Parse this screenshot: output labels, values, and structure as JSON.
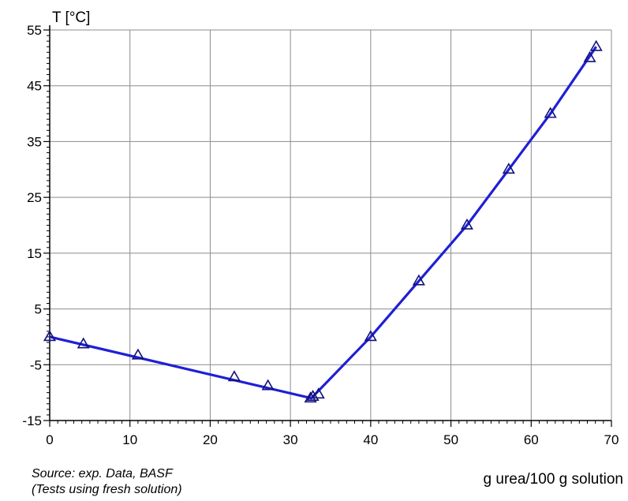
{
  "chart_data": {
    "type": "scatter",
    "title": "",
    "ylabel": "T [°C]",
    "xlabel": "g urea/100 g solution",
    "xlim": [
      0,
      70
    ],
    "ylim": [
      -15,
      55
    ],
    "xticks": [
      0,
      10,
      20,
      30,
      40,
      50,
      60,
      70
    ],
    "yticks": [
      -15,
      -5,
      5,
      15,
      25,
      35,
      45,
      55
    ],
    "xtick_labels": [
      "0",
      "10",
      "20",
      "30",
      "40",
      "50",
      "60",
      "70"
    ],
    "ytick_labels": [
      "-15",
      "-5",
      "5",
      "15",
      "25",
      "35",
      "45",
      "55"
    ],
    "grid": true,
    "marker": "triangle-open",
    "series": [
      {
        "name": "",
        "color": "#1f1fd6",
        "marker_color": "#10107a",
        "points": [
          {
            "x": 0,
            "y": 0
          },
          {
            "x": 4.2,
            "y": -1.3
          },
          {
            "x": 11,
            "y": -3.3
          },
          {
            "x": 23,
            "y": -7.2
          },
          {
            "x": 27.2,
            "y": -8.8
          },
          {
            "x": 32.5,
            "y": -11
          },
          {
            "x": 32.8,
            "y": -10.7
          },
          {
            "x": 33.5,
            "y": -10.3
          },
          {
            "x": 40,
            "y": 0
          },
          {
            "x": 46,
            "y": 10
          },
          {
            "x": 52,
            "y": 20
          },
          {
            "x": 57.2,
            "y": 30
          },
          {
            "x": 62.4,
            "y": 40
          },
          {
            "x": 67.3,
            "y": 50
          },
          {
            "x": 68.1,
            "y": 52
          }
        ],
        "line": [
          {
            "x": 0,
            "y": 0
          },
          {
            "x": 32.6,
            "y": -11
          },
          {
            "x": 40,
            "y": 0
          },
          {
            "x": 46,
            "y": 10
          },
          {
            "x": 52,
            "y": 20
          },
          {
            "x": 57.2,
            "y": 30
          },
          {
            "x": 62.4,
            "y": 40
          },
          {
            "x": 68.1,
            "y": 52
          }
        ]
      }
    ]
  },
  "notes": {
    "source_line1": "Source: exp. Data, BASF",
    "source_line2": "(Tests using fresh solution)"
  }
}
